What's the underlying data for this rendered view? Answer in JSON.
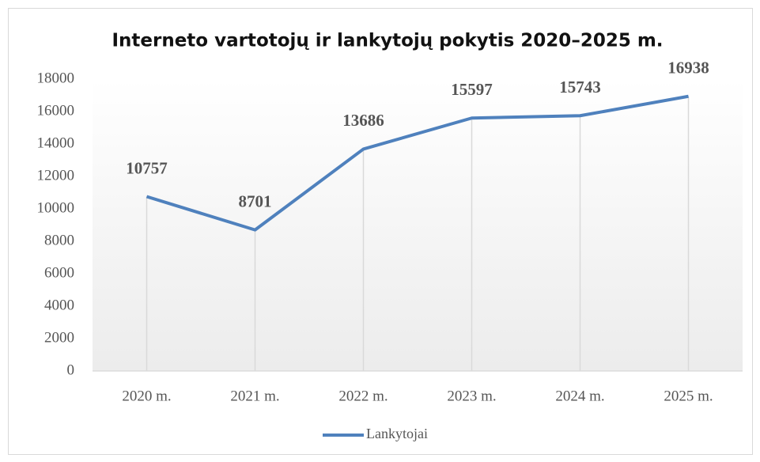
{
  "chart_data": {
    "type": "line",
    "title": "Interneto vartotojų ir lankytojų pokytis 2020–2025 m.",
    "categories": [
      "2020 m.",
      "2021 m.",
      "2022 m.",
      "2023 m.",
      "2024 m.",
      "2025 m."
    ],
    "series": [
      {
        "name": "Lankytojai",
        "color": "#4f81bd",
        "values": [
          10757,
          8701,
          13686,
          15597,
          15743,
          16938
        ]
      }
    ],
    "ylim": [
      0,
      18000
    ],
    "yticks": [
      0,
      2000,
      4000,
      6000,
      8000,
      10000,
      12000,
      14000,
      16000,
      18000
    ],
    "drop_lines": true,
    "data_labels": true,
    "legend": "bottom"
  }
}
